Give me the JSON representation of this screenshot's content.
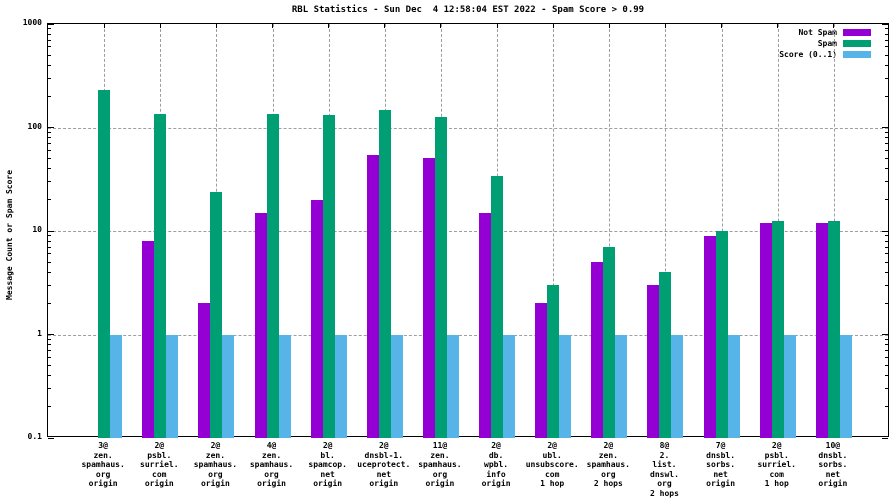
{
  "chart_data": {
    "type": "bar",
    "title": "RBL Statistics - Sun Dec  4 12:58:04 EST 2022 - Spam Score > 0.99",
    "ylabel": "Message Count or Spam Score",
    "yscale": "log",
    "ylim": [
      0.1,
      1000
    ],
    "ytick_labels": [
      "1000",
      "100",
      "10",
      "1",
      "0.1"
    ],
    "grid": true,
    "legend_position": "top-right-inside",
    "background": "#ffffff",
    "grid_color": "#9e9e9e",
    "categories": [
      [
        "3@",
        "zen.",
        "spamhaus.",
        "org",
        "origin"
      ],
      [
        "2@",
        "psbl.",
        "surriel.",
        "com",
        "origin"
      ],
      [
        "2@",
        "zen.",
        "spamhaus.",
        "org",
        "origin"
      ],
      [
        "4@",
        "zen.",
        "spamhaus.",
        "org",
        "origin"
      ],
      [
        "2@",
        "bl.",
        "spamcop.",
        "net",
        "origin"
      ],
      [
        "2@",
        "dnsbl-1.",
        "uceprotect.",
        "net",
        "origin"
      ],
      [
        "11@",
        "zen.",
        "spamhaus.",
        "org",
        "origin"
      ],
      [
        "2@",
        "db.",
        "wpbl.",
        "info",
        "origin"
      ],
      [
        "2@",
        "ubl.",
        "unsubscore.",
        "com",
        "1 hop"
      ],
      [
        "2@",
        "zen.",
        "spamhaus.",
        "org",
        "2 hops"
      ],
      [
        "8@",
        "2.",
        "list.",
        "dnswl.",
        "org",
        "2 hops"
      ],
      [
        "7@",
        "dnsbl.",
        "sorbs.",
        "net",
        "origin"
      ],
      [
        "2@",
        "psbl.",
        "surriel.",
        "com",
        "1 hop"
      ],
      [
        "10@",
        "dnsbl.",
        "sorbs.",
        "net",
        "origin"
      ]
    ],
    "series": [
      {
        "key": "not-spam",
        "name": "Not Spam",
        "color": "#9400D3",
        "values": [
          null,
          8,
          2,
          15,
          20,
          54,
          51,
          15,
          2,
          5,
          3,
          9,
          12,
          12
        ]
      },
      {
        "key": "spam",
        "name": "Spam",
        "color": "#009E73",
        "values": [
          230,
          135,
          24,
          135,
          132,
          148,
          125,
          34,
          3,
          7,
          4,
          10,
          12.5,
          12.5
        ]
      },
      {
        "key": "score",
        "name": "Score (0..1)",
        "color": "#56B4E9",
        "values": [
          1,
          1,
          1,
          1,
          1,
          1,
          1,
          1,
          1,
          1,
          1,
          1,
          1,
          1
        ]
      }
    ]
  }
}
